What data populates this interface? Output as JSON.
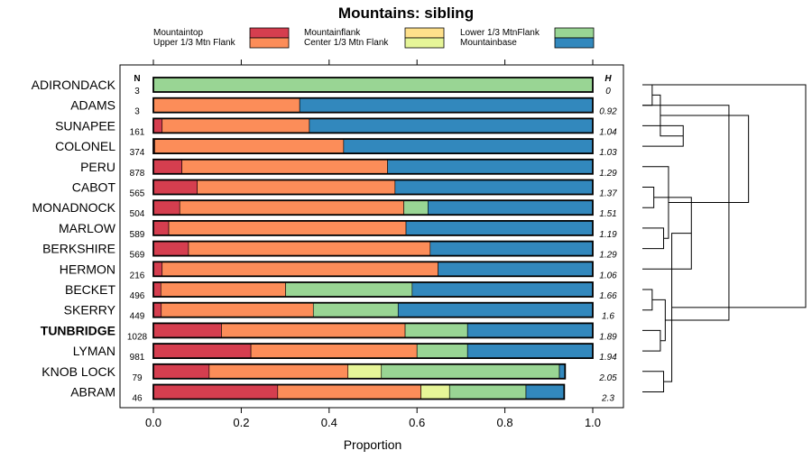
{
  "chart_data": {
    "type": "stacked-bar",
    "title": "Mountains: sibling",
    "xlabel": "Proportion",
    "xlim": [
      0,
      1
    ],
    "xticks": [
      "0.0",
      "0.2",
      "0.4",
      "0.6",
      "0.8",
      "1.0"
    ],
    "n_header": "N",
    "h_header": "H",
    "series": [
      {
        "name": "Mountaintop",
        "color": "#d53e4f"
      },
      {
        "name": "Upper 1/3 Mtn Flank",
        "color": "#fc8d59"
      },
      {
        "name": "Mountainflank",
        "color": "#fee08b"
      },
      {
        "name": "Center 1/3 Mtn Flank",
        "color": "#e6f598"
      },
      {
        "name": "Lower 1/3 MtnFlank",
        "color": "#99d594"
      },
      {
        "name": "Mountainbase",
        "color": "#3288bd"
      }
    ],
    "rows": [
      {
        "name": "ADIRONDACK",
        "n": "3",
        "h": "0",
        "bold": false,
        "values": [
          0,
          0,
          0,
          0,
          1.0,
          0
        ]
      },
      {
        "name": "ADAMS",
        "n": "3",
        "h": "0.92",
        "bold": false,
        "values": [
          0,
          0.333,
          0,
          0,
          0,
          0.667
        ]
      },
      {
        "name": "SUNAPEE",
        "n": "161",
        "h": "1.04",
        "bold": false,
        "values": [
          0.02,
          0.335,
          0,
          0,
          0,
          0.645
        ]
      },
      {
        "name": "COLONEL",
        "n": "374",
        "h": "1.03",
        "bold": false,
        "values": [
          0.003,
          0.43,
          0,
          0,
          0,
          0.567
        ]
      },
      {
        "name": "PERU",
        "n": "878",
        "h": "1.29",
        "bold": false,
        "values": [
          0.065,
          0.468,
          0,
          0,
          0,
          0.467
        ]
      },
      {
        "name": "CABOT",
        "n": "565",
        "h": "1.37",
        "bold": false,
        "values": [
          0.1,
          0.45,
          0,
          0,
          0,
          0.45
        ]
      },
      {
        "name": "MONADNOCK",
        "n": "504",
        "h": "1.51",
        "bold": false,
        "values": [
          0.06,
          0.51,
          0,
          0,
          0.055,
          0.375
        ]
      },
      {
        "name": "MARLOW",
        "n": "589",
        "h": "1.19",
        "bold": false,
        "values": [
          0.035,
          0.54,
          0,
          0,
          0,
          0.425
        ]
      },
      {
        "name": "BERKSHIRE",
        "n": "569",
        "h": "1.29",
        "bold": false,
        "values": [
          0.08,
          0.55,
          0,
          0,
          0,
          0.37
        ]
      },
      {
        "name": "HERMON",
        "n": "216",
        "h": "1.06",
        "bold": false,
        "values": [
          0.02,
          0.628,
          0,
          0,
          0,
          0.352
        ]
      },
      {
        "name": "BECKET",
        "n": "496",
        "h": "1.66",
        "bold": false,
        "values": [
          0.017,
          0.284,
          0,
          0,
          0.288,
          0.411
        ]
      },
      {
        "name": "SKERRY",
        "n": "449",
        "h": "1.6",
        "bold": false,
        "values": [
          0.018,
          0.346,
          0,
          0,
          0.193,
          0.443
        ]
      },
      {
        "name": "TUNBRIDGE",
        "n": "1028",
        "h": "1.89",
        "bold": true,
        "values": [
          0.155,
          0.418,
          0,
          0,
          0.142,
          0.285
        ]
      },
      {
        "name": "LYMAN",
        "n": "981",
        "h": "1.94",
        "bold": false,
        "values": [
          0.222,
          0.378,
          0,
          0,
          0.115,
          0.285
        ]
      },
      {
        "name": "KNOB LOCK",
        "n": "79",
        "h": "2.05",
        "bold": false,
        "values": [
          0.127,
          0.316,
          0,
          0.076,
          0.405,
          0.013
        ]
      },
      {
        "name": "ABRAM",
        "n": "46",
        "h": "2.3",
        "bold": false,
        "values": [
          0.283,
          0.326,
          0,
          0.065,
          0.174,
          0.087
        ]
      }
    ],
    "dendrogram": {
      "type": "hierarchical-clustering",
      "merges": [
        [
          0,
          1
        ],
        [
          3,
          2
        ],
        [
          5,
          6
        ],
        [
          8,
          7
        ],
        [
          10,
          11
        ],
        [
          13,
          12
        ],
        [
          15,
          14
        ],
        [
          18,
          9
        ],
        [
          16,
          17
        ],
        [
          19,
          4
        ],
        [
          20,
          21
        ],
        [
          23,
          22
        ],
        [
          25,
          24
        ],
        [
          26,
          1
        ],
        [
          27,
          0
        ]
      ],
      "heights": [
        0.06,
        0.25,
        0.07,
        0.13,
        0.06,
        0.11,
        0.13,
        0.3,
        0.11,
        0.16,
        0.14,
        0.18,
        0.65,
        0.53,
        1.0
      ]
    }
  }
}
